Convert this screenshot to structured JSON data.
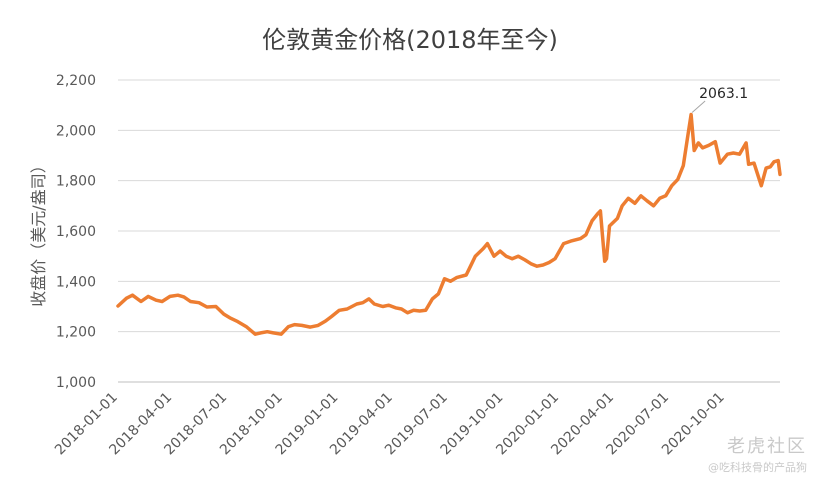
{
  "watermark": {
    "logo": "老虎社区",
    "sub": "@吃科技骨的产品狗"
  },
  "chart_data": {
    "type": "line",
    "title": "伦敦黄金价格(2018年至今)",
    "ylabel": "收盘价（美元/盎司）",
    "xlabel": "",
    "ylim": [
      1000,
      2200
    ],
    "yticks": [
      1000,
      1200,
      1400,
      1600,
      1800,
      2000,
      2200
    ],
    "ytick_labels": [
      "1,000",
      "1,200",
      "1,400",
      "1,600",
      "1,800",
      "2,000",
      "2,200"
    ],
    "xticks": [
      "2018-01-01",
      "2018-04-01",
      "2018-07-01",
      "2018-10-01",
      "2019-01-01",
      "2019-04-01",
      "2019-07-01",
      "2019-10-01",
      "2020-01-01",
      "2020-04-01",
      "2020-07-01",
      "2020-10-01"
    ],
    "x_end": "2020-12-31",
    "grid": true,
    "line_color": "#ed7d31",
    "annotation": {
      "text": "2063.1",
      "x": "2020-08-06",
      "y": 2063.1
    },
    "series": [
      {
        "x": [
          "2018-01-01",
          "2018-01-15",
          "2018-01-25",
          "2018-02-08",
          "2018-02-20",
          "2018-03-05",
          "2018-03-15",
          "2018-03-28",
          "2018-04-10",
          "2018-04-20",
          "2018-05-01",
          "2018-05-15",
          "2018-05-28",
          "2018-06-12",
          "2018-06-25",
          "2018-07-05",
          "2018-07-18",
          "2018-08-01",
          "2018-08-16",
          "2018-08-25",
          "2018-09-05",
          "2018-09-15",
          "2018-09-28",
          "2018-10-10",
          "2018-10-20",
          "2018-11-01",
          "2018-11-15",
          "2018-11-28",
          "2018-12-10",
          "2018-12-20",
          "2019-01-02",
          "2019-01-15",
          "2019-01-31",
          "2019-02-10",
          "2019-02-20",
          "2019-03-01",
          "2019-03-15",
          "2019-03-25",
          "2019-04-05",
          "2019-04-15",
          "2019-04-25",
          "2019-05-05",
          "2019-05-15",
          "2019-05-25",
          "2019-06-05",
          "2019-06-15",
          "2019-06-25",
          "2019-07-05",
          "2019-07-15",
          "2019-07-31",
          "2019-08-07",
          "2019-08-15",
          "2019-08-28",
          "2019-09-04",
          "2019-09-15",
          "2019-09-25",
          "2019-10-05",
          "2019-10-15",
          "2019-10-25",
          "2019-11-05",
          "2019-11-15",
          "2019-11-25",
          "2019-12-05",
          "2019-12-15",
          "2019-12-25",
          "2020-01-08",
          "2020-01-20",
          "2020-02-05",
          "2020-02-14",
          "2020-02-24",
          "2020-03-05",
          "2020-03-09",
          "2020-03-12",
          "2020-03-16",
          "2020-03-19",
          "2020-03-24",
          "2020-04-06",
          "2020-04-14",
          "2020-04-24",
          "2020-05-05",
          "2020-05-15",
          "2020-05-25",
          "2020-06-05",
          "2020-06-15",
          "2020-06-25",
          "2020-07-05",
          "2020-07-15",
          "2020-07-24",
          "2020-07-31",
          "2020-08-06",
          "2020-08-11",
          "2020-08-18",
          "2020-08-25",
          "2020-09-04",
          "2020-09-15",
          "2020-09-23",
          "2020-10-05",
          "2020-10-15",
          "2020-10-25",
          "2020-11-05",
          "2020-11-09",
          "2020-11-18",
          "2020-11-30",
          "2020-12-08",
          "2020-12-15",
          "2020-12-21",
          "2020-12-28",
          "2020-12-31"
        ],
        "y": [
          1302,
          1333,
          1345,
          1320,
          1340,
          1325,
          1320,
          1340,
          1345,
          1338,
          1320,
          1315,
          1298,
          1300,
          1270,
          1255,
          1240,
          1220,
          1190,
          1195,
          1200,
          1195,
          1190,
          1220,
          1228,
          1225,
          1218,
          1225,
          1242,
          1260,
          1285,
          1290,
          1310,
          1315,
          1330,
          1310,
          1300,
          1305,
          1295,
          1290,
          1275,
          1285,
          1282,
          1285,
          1330,
          1350,
          1410,
          1400,
          1415,
          1425,
          1460,
          1500,
          1530,
          1550,
          1500,
          1520,
          1500,
          1490,
          1500,
          1485,
          1470,
          1460,
          1465,
          1475,
          1490,
          1550,
          1560,
          1570,
          1585,
          1640,
          1670,
          1680,
          1590,
          1480,
          1490,
          1620,
          1650,
          1700,
          1730,
          1710,
          1740,
          1720,
          1700,
          1730,
          1740,
          1780,
          1805,
          1860,
          1970,
          2063.1,
          1920,
          1950,
          1930,
          1940,
          1955,
          1870,
          1905,
          1910,
          1905,
          1950,
          1865,
          1870,
          1780,
          1850,
          1855,
          1875,
          1880,
          1825
        ]
      }
    ]
  }
}
